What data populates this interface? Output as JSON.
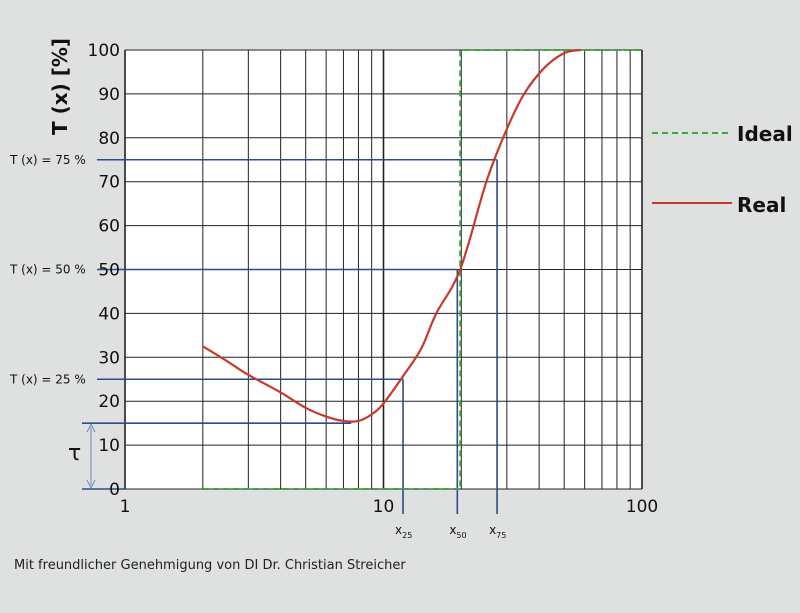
{
  "chart_data": {
    "type": "line",
    "xscale": "log",
    "xlim": [
      1,
      100
    ],
    "ylim": [
      0,
      100
    ],
    "x_ticks": [
      "1",
      "10",
      "100"
    ],
    "y_ticks": [
      "0",
      "10",
      "20",
      "30",
      "40",
      "50",
      "60",
      "70",
      "80",
      "90",
      "100"
    ],
    "ylabel": "T (x) [%]",
    "grid": true,
    "legend_position": "right",
    "series": [
      {
        "name": "Ideal",
        "style": "dashed",
        "color": "#3aa83a",
        "x": [
          2,
          19.8,
          19.8,
          100
        ],
        "y": [
          0,
          0,
          100,
          100
        ]
      },
      {
        "name": "Real",
        "style": "solid",
        "color": "#c8392b",
        "x": [
          2,
          2.5,
          3,
          4,
          5,
          6,
          7,
          8,
          9,
          10,
          12,
          14,
          16,
          19.8,
          25,
          30,
          35,
          42,
          50,
          58
        ],
        "y": [
          32.5,
          29,
          26,
          22,
          18.5,
          16.5,
          15.5,
          15.5,
          17,
          19.5,
          26,
          32,
          40,
          50,
          70,
          82,
          90,
          96,
          99.3,
          100
        ]
      }
    ],
    "annotations": {
      "levels": [
        {
          "label": "T (x) = 75 %",
          "y": 75,
          "x_label": "x",
          "x_sub": "75",
          "x": 27.5
        },
        {
          "label": "T (x) = 50 %",
          "y": 50,
          "x_label": "x",
          "x_sub": "50",
          "x": 19.3
        },
        {
          "label": "T (x) = 25 %",
          "y": 25,
          "x_label": "x",
          "x_sub": "25",
          "x": 11.9
        }
      ],
      "tau_label": "τ",
      "tau_value": 15,
      "guide_color": "#2e4a8c"
    }
  },
  "credit": "Mit freundlicher Genehmigung von DI Dr. Christian Streicher"
}
